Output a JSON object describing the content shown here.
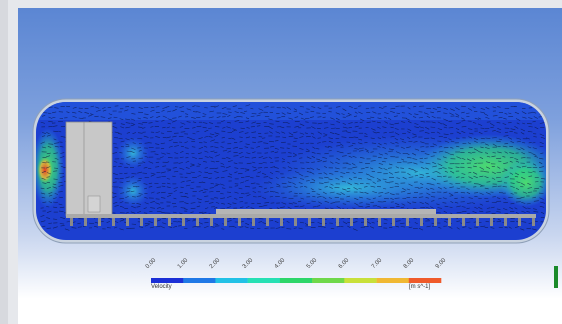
{
  "legend": {
    "title": "Velocity",
    "unit": "[m s^-1]",
    "ticks": [
      "0.00",
      "1.00",
      "2.00",
      "3.00",
      "4.00",
      "5.00",
      "6.00",
      "7.00",
      "8.00",
      "9.00"
    ],
    "colors": [
      "#1b2fd6",
      "#1f78e6",
      "#22c1e6",
      "#27e0b4",
      "#2dd66a",
      "#6fd84a",
      "#c8e03a",
      "#f0b833",
      "#ef5a2a"
    ]
  },
  "palette": {
    "tube_fill": "#1c3fd0",
    "wall": "#c9d3e0",
    "fan_block": "#c8c8c8",
    "floor_plate": "#a9a9a9",
    "floor_ribs": "#8a8a8a",
    "vector_color": "#0a1540",
    "hot_zone": "#e83a22",
    "warm_zone": "#30d680",
    "cool_zone": "#2aa8e6"
  }
}
